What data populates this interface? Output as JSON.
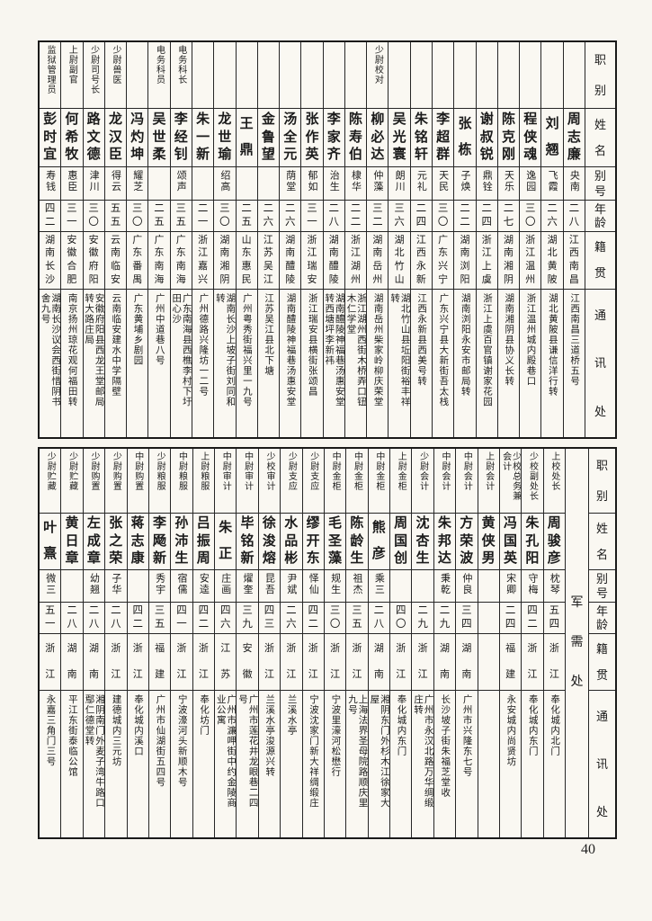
{
  "page_number": "40",
  "headers": [
    "职别",
    "姓名",
    "别号",
    "年龄",
    "籍贯",
    "通讯处"
  ],
  "tables": [
    {
      "id": "top",
      "section_label": "",
      "entries": [
        {
          "role": "",
          "name": "周志廉",
          "alias": "央南",
          "age": "二八",
          "origin": "江西南昌",
          "address": "江西南昌三道桥五号"
        },
        {
          "role": "",
          "name": "刘翘",
          "alias": "飞霞",
          "age": "二六",
          "origin": "湖北黄陂",
          "address": "湖北黄陂县谦信洋行转"
        },
        {
          "role": "",
          "name": "程侠魂",
          "alias": "逸园",
          "age": "三〇",
          "origin": "浙江温州",
          "address": "浙江温州城内殿巷口"
        },
        {
          "role": "",
          "name": "陈克刚",
          "alias": "天乐",
          "age": "二七",
          "origin": "湖南湘阴",
          "address": "湖南湘阴县协义长转"
        },
        {
          "role": "",
          "name": "谢叔锐",
          "alias": "鼎铨",
          "age": "二四",
          "origin": "浙江上虞",
          "address": "浙江上虞百官镇谢家花园"
        },
        {
          "role": "",
          "name": "张栋",
          "alias": "子焕",
          "age": "二二",
          "origin": "湖南浏阳",
          "address": "湖南浏阳永安市邮局转"
        },
        {
          "role": "",
          "name": "李超群",
          "alias": "天民",
          "age": "三〇",
          "origin": "广东兴宁",
          "address": "广东兴宁县大新街吾太栈"
        },
        {
          "role": "",
          "name": "朱铭轩",
          "alias": "元礼",
          "age": "二四",
          "origin": "江西永新",
          "address": "江西永新县西美号转"
        },
        {
          "role": "",
          "name": "吴光寰",
          "alias": "朗川",
          "age": "三六",
          "origin": "湖北竹山",
          "address": "湖北竹山县坵阳街裕丰祥转"
        },
        {
          "role": "少尉校对",
          "name": "柳必达",
          "alias": "仲藻",
          "age": "三二",
          "origin": "湖南岳州",
          "address": "湖南岳州柴家岭柳庆荣堂"
        },
        {
          "role": "",
          "name": "陈寿伯",
          "alias": "棣华",
          "age": "二二",
          "origin": "浙江湖州",
          "address": "浙江湖州西街木桥弄口钮木仁学堂"
        },
        {
          "role": "",
          "name": "李家齐",
          "alias": "治生",
          "age": "二八",
          "origin": "湖南醴陵",
          "address": "湖南醴陵神福巷汤惠安堂转西塘坪李新祎"
        },
        {
          "role": "",
          "name": "张作英",
          "alias": "郁如",
          "age": "三一",
          "origin": "浙江瑞安",
          "address": "浙江瑞安县横街张颂昌"
        },
        {
          "role": "",
          "name": "汤全元",
          "alias": "荫堂",
          "age": "二六",
          "origin": "湖南醴陵",
          "address": "湖南醴陵神福巷汤惠安堂"
        },
        {
          "role": "",
          "name": "金鲁望",
          "alias": "",
          "age": "二六",
          "origin": "江苏吴江",
          "address": "江苏吴江县北下塘"
        },
        {
          "role": "",
          "name": "王鼎",
          "alias": "",
          "age": "二五",
          "origin": "山东惠民",
          "address": "广州粤秀街福兴里一九号"
        },
        {
          "role": "",
          "name": "龙世瑜",
          "alias": "绍高",
          "age": "三〇",
          "origin": "湖南湘阴",
          "address": "湖南长沙上坡子街刘同和转"
        },
        {
          "role": "",
          "name": "朱一新",
          "alias": "",
          "age": "二一",
          "origin": "浙江嘉兴",
          "address": "广州德路兴隆坊一二号"
        },
        {
          "role": "电务科长",
          "name": "李经钊",
          "alias": "颂声",
          "age": "三五",
          "origin": "广东南海",
          "address": "广东南海县西樵李村下圩田心沙"
        },
        {
          "role": "电务科员",
          "name": "吴世柔",
          "alias": "",
          "age": "二五",
          "origin": "广东南海",
          "address": "广州中道巷八号"
        },
        {
          "role": "",
          "name": "冯灼坤",
          "alias": "耀芝",
          "age": "三〇",
          "origin": "广东番禺",
          "address": "广东黄埔乡剧园"
        },
        {
          "role": "少尉兽医",
          "name": "龙汉臣",
          "alias": "得云",
          "age": "五五",
          "origin": "云南临安",
          "address": "云南临安建水中学隔壁"
        },
        {
          "role": "少尉司号长",
          "name": "路文德",
          "alias": "津川",
          "age": "三〇",
          "origin": "安徽府阳",
          "address": "安徽府阳县西龙王堂邮局转大路庄局"
        },
        {
          "role": "上尉副官",
          "name": "何希牧",
          "alias": "惠臣",
          "age": "三一",
          "origin": "安徽合肥",
          "address": "南京扬州琼花观何福田转"
        },
        {
          "role": "监狱管理员",
          "name": "彭时宜",
          "alias": "寿钱",
          "age": "四二",
          "origin": "湖南长沙",
          "address": "湖南长沙议会西街惜阴书舍九号"
        }
      ]
    },
    {
      "id": "bottom",
      "section_label": "军需处",
      "entries": [
        {
          "role": "上校处长",
          "name": "周骏彦",
          "alias": "枕琴",
          "age": "五四",
          "origin": "浙江",
          "address": "奉化城内北门"
        },
        {
          "role": "少校副处长",
          "name": "朱孔阳",
          "alias": "守梅",
          "age": "四二",
          "origin": "浙江",
          "address": "奉化城内东门"
        },
        {
          "role": "少校总务兼会计",
          "name": "冯国英",
          "alias": "宋卿",
          "age": "二四",
          "origin": "福建",
          "address": "永安城内尚贤坊"
        },
        {
          "role": "上尉会计",
          "name": "黄侠男",
          "alias": "",
          "age": "",
          "origin": "",
          "address": ""
        },
        {
          "role": "中尉会计",
          "name": "方荣波",
          "alias": "仲良",
          "age": "三四",
          "origin": "湖南",
          "address": "广州市兴隆东七号"
        },
        {
          "role": "中尉会计",
          "name": "朱邦达",
          "alias": "秉乾",
          "age": "二九",
          "origin": "湖南",
          "address": "长沙坡子街朱福芝堂收"
        },
        {
          "role": "少尉会计",
          "name": "沈杏生",
          "alias": "",
          "age": "二九",
          "origin": "浙江",
          "address": "广州市永汉北路万华绸缎庄转"
        },
        {
          "role": "上尉金柜",
          "name": "周国创",
          "alias": "",
          "age": "四〇",
          "origin": "浙江",
          "address": "奉化城内东门"
        },
        {
          "role": "中尉金柜",
          "name": "熊彦",
          "alias": "乘三",
          "age": "二八",
          "origin": "湖南",
          "address": "湘阴东门外杉木江徐家大屋"
        },
        {
          "role": "中尉金柜",
          "name": "陈龄生",
          "alias": "祖杰",
          "age": "三五",
          "origin": "浙江",
          "address": "上海法界圣母院路顺庆里九号"
        },
        {
          "role": "中尉金柜",
          "name": "毛圣藻",
          "alias": "规生",
          "age": "三〇",
          "origin": "浙江",
          "address": "宁波里濠河松懋行"
        },
        {
          "role": "少尉支应",
          "name": "缪开东",
          "alias": "怿仙",
          "age": "四二",
          "origin": "浙江",
          "address": "宁波沈家门新大祥绸缎庄"
        },
        {
          "role": "少尉支应",
          "name": "水品彬",
          "alias": "尹斌",
          "age": "二六",
          "origin": "浙江",
          "address": "兰溪水亭"
        },
        {
          "role": "少校审计",
          "name": "徐浚熔",
          "alias": "昆吾",
          "age": "四三",
          "origin": "浙江",
          "address": "兰溪水亭浚源兴转"
        },
        {
          "role": "中尉审计",
          "name": "毕铭新",
          "alias": "燿奎",
          "age": "三九",
          "origin": "安徽",
          "address": "广州市莲花井龙眼巷二四号"
        },
        {
          "role": "中尉审计",
          "name": "朱正",
          "alias": "庄画",
          "age": "四六",
          "origin": "江苏",
          "address": "广州市濂呷街中约金陵商业公寓"
        },
        {
          "role": "上尉粮服",
          "name": "吕振周",
          "alias": "安逵",
          "age": "四二",
          "origin": "浙江",
          "address": "奉化坊门"
        },
        {
          "role": "中尉粮服",
          "name": "孙沛生",
          "alias": "宿儒",
          "age": "四一",
          "origin": "浙江",
          "address": "宁波濠河头新顺木号"
        },
        {
          "role": "少尉粮服",
          "name": "李飏新",
          "alias": "秀宇",
          "age": "三五",
          "origin": "福建",
          "address": "广州市仙湖街五四号"
        },
        {
          "role": "中尉购置",
          "name": "蒋志康",
          "alias": "",
          "age": "四二",
          "origin": "浙江",
          "address": "奉化城内溪口"
        },
        {
          "role": "少尉购置",
          "name": "张之荣",
          "alias": "子华",
          "age": "二八",
          "origin": "浙江",
          "address": "建德城内三元坊"
        },
        {
          "role": "少尉购置",
          "name": "左成章",
          "alias": "幼翘",
          "age": "二八",
          "origin": "湖南",
          "address": "湘阴南门外麦子湾牛路口鄢仁德堂转"
        },
        {
          "role": "少尉贮藏",
          "name": "黄日章",
          "alias": "",
          "age": "二八",
          "origin": "湖南",
          "address": "平江东街泰临公馆"
        },
        {
          "role": "少尉贮藏",
          "name": "叶熹",
          "alias": "微三",
          "age": "五一",
          "origin": "浙江",
          "address": "永嘉三角门三号"
        }
      ]
    }
  ]
}
